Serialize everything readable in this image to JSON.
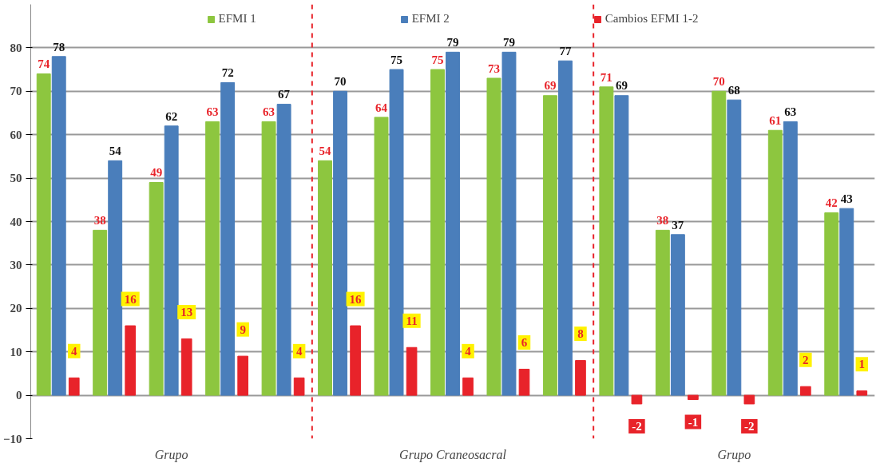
{
  "chart_data": {
    "type": "bar",
    "categories": [
      null,
      null,
      "Grupo",
      null,
      null,
      null,
      null,
      "Grupo Craneosacral",
      null,
      null,
      null,
      null,
      "Grupo",
      null,
      null
    ],
    "series": [
      {
        "name": "EFMI 1",
        "color": "#8dc63f",
        "values": [
          74,
          38,
          49,
          63,
          63,
          54,
          64,
          75,
          73,
          69,
          71,
          38,
          70,
          61,
          42
        ]
      },
      {
        "name": "EFMI 2",
        "color": "#4a7ebb",
        "values": [
          78,
          54,
          62,
          72,
          67,
          70,
          75,
          79,
          79,
          77,
          69,
          37,
          68,
          63,
          43
        ]
      },
      {
        "name": "Cambios EFMI 1-2",
        "color": "#e8232a",
        "values": [
          4,
          16,
          13,
          9,
          4,
          16,
          11,
          4,
          6,
          8,
          -2,
          -1,
          -2,
          2,
          1
        ]
      }
    ],
    "ylim": [
      -10,
      90
    ],
    "yticks": [
      -10,
      0,
      10,
      20,
      30,
      40,
      50,
      60,
      70,
      80
    ],
    "grid": "y",
    "legend": "top",
    "data_labels": true
  }
}
